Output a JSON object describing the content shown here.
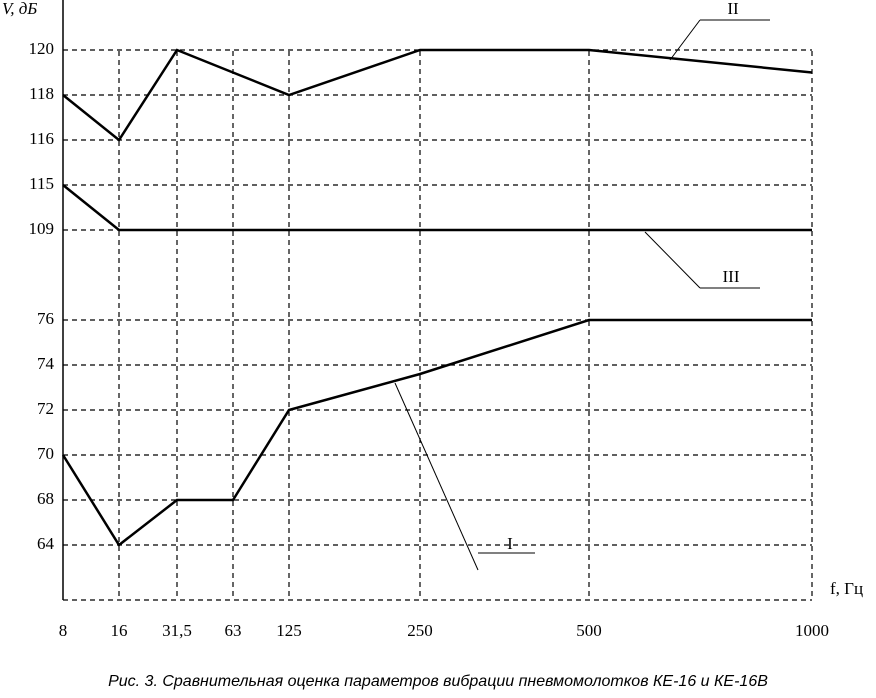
{
  "chart_data": {
    "type": "line",
    "x_label": "f, Гц",
    "y_label": "V, дБ",
    "caption": "Рис. 3. Сравнительная оценка параметров вибрации пневмомолотков КЕ-16 и КЕ-16В",
    "x": [
      8,
      16,
      {
        "value": 31.5,
        "label": "31,5"
      },
      63,
      125,
      250,
      500,
      1000
    ],
    "xticks": [
      8,
      16,
      {
        "value": 31.5,
        "label": "31,5"
      },
      63,
      125,
      250,
      500,
      1000
    ],
    "yticks": [
      64,
      68,
      70,
      72,
      74,
      76,
      109,
      115,
      116,
      118,
      120
    ],
    "grid": true,
    "series": [
      {
        "name": "II",
        "color": "#000000",
        "values": [
          118,
          116,
          120,
          119,
          118,
          120,
          120,
          119
        ]
      },
      {
        "name": "III",
        "color": "#000000",
        "values": [
          115,
          109,
          109,
          109,
          109,
          109,
          109,
          109
        ]
      },
      {
        "name": "I",
        "color": "#000000",
        "values": [
          70,
          64,
          68,
          68,
          72,
          73.6,
          76,
          76
        ]
      }
    ]
  }
}
